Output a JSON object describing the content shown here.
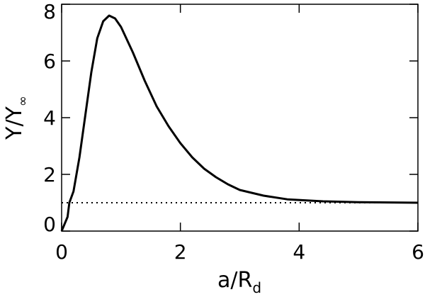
{
  "chart_data": {
    "type": "line",
    "x_label": {
      "main": "a/R",
      "sub": "d"
    },
    "y_label": {
      "main": "Y/Y",
      "sub": "∞"
    },
    "x": [
      0,
      0.1,
      0.13,
      0.2,
      0.3,
      0.4,
      0.5,
      0.6,
      0.7,
      0.8,
      0.9,
      1.0,
      1.2,
      1.4,
      1.6,
      1.8,
      2.0,
      2.2,
      2.4,
      2.6,
      2.8,
      3.0,
      3.4,
      3.8,
      4.4,
      5.0,
      6.0
    ],
    "series": [
      {
        "color": "#000000",
        "values": [
          0,
          0.5,
          1.0,
          1.4,
          2.6,
          4.1,
          5.6,
          6.8,
          7.4,
          7.6,
          7.5,
          7.2,
          6.3,
          5.3,
          4.4,
          3.7,
          3.1,
          2.6,
          2.2,
          1.9,
          1.65,
          1.45,
          1.25,
          1.12,
          1.05,
          1.02,
          1.0
        ]
      }
    ],
    "hline": {
      "value": 1,
      "style": "dotted",
      "color": "#000000"
    },
    "xlim": [
      0,
      6
    ],
    "xticks": [
      0,
      2,
      4,
      6
    ],
    "ylim": [
      0,
      8
    ],
    "yticks": [
      0,
      2,
      4,
      6,
      8
    ],
    "grid": false
  }
}
